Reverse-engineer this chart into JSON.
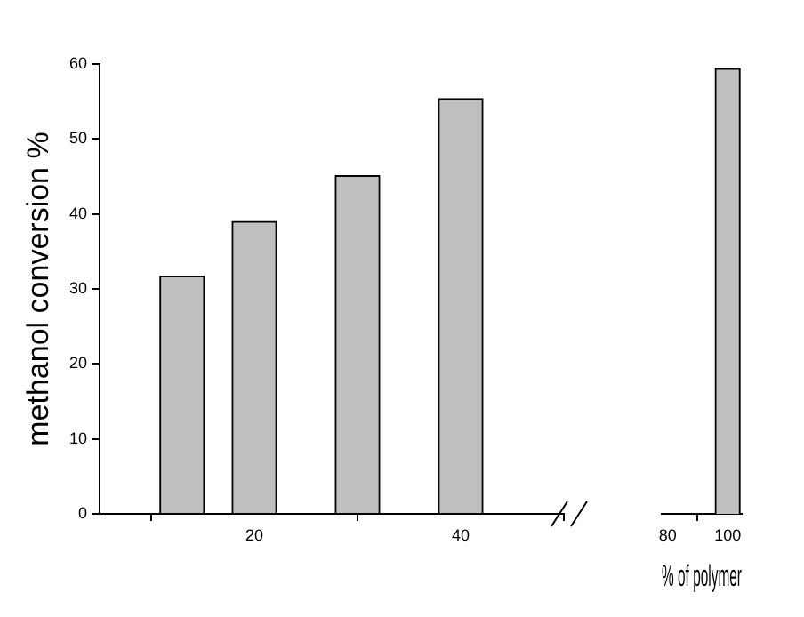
{
  "chart_data": [
    {
      "type": "bar",
      "ylabel": "methanol conversion %",
      "x": [
        13,
        20,
        30,
        40
      ],
      "values": [
        31.7,
        39.0,
        45.1,
        55.4
      ],
      "color": "#c0c0c0",
      "xlim": [
        5,
        50
      ],
      "xticks": [
        20,
        40
      ],
      "ylim": [
        0,
        60
      ],
      "yticks": [
        0,
        10,
        20,
        30,
        40,
        50,
        60
      ],
      "legend": false
    },
    {
      "type": "bar",
      "xlabel": "% of polymer",
      "x": [
        100
      ],
      "values": [
        59.4
      ],
      "color": "#c0c0c0",
      "xlim": [
        78,
        104.7
      ],
      "xticks": [
        80,
        100
      ],
      "ylim": [
        0,
        60
      ],
      "tick_labels": "x",
      "legend": false
    }
  ]
}
